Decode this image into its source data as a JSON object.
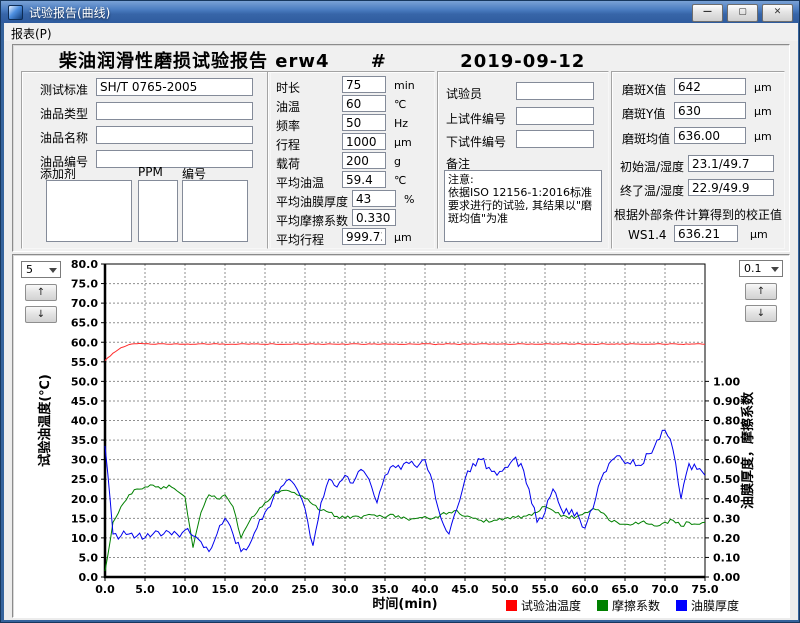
{
  "window": {
    "title": "试验报告(曲线)",
    "menu_item": "报表(P)",
    "buttons": {
      "minimize": "—",
      "maximize": "▢",
      "close": "✕"
    }
  },
  "report": {
    "title": "柴油润滑性磨损试验报告 erw4",
    "separator": "#",
    "date": "2019-09-12"
  },
  "sample_box": {
    "rows": [
      {
        "label": "测试标准",
        "value": "SH/T 0765-2005"
      },
      {
        "label": "油品类型",
        "value": ""
      },
      {
        "label": "油品名称",
        "value": ""
      },
      {
        "label": "油品编号",
        "value": ""
      }
    ],
    "additive_label": "添加剂",
    "ppm_label": "PPM",
    "number_label": "编号"
  },
  "param_box": {
    "rows": [
      {
        "label": "时长",
        "value": "75",
        "unit": "min"
      },
      {
        "label": "油温",
        "value": "60",
        "unit": "℃"
      },
      {
        "label": "频率",
        "value": "50",
        "unit": "Hz"
      },
      {
        "label": "行程",
        "value": "1000",
        "unit": "μm"
      },
      {
        "label": "载荷",
        "value": "200",
        "unit": "g"
      },
      {
        "label": "平均油温",
        "value": "59.4",
        "unit": "℃"
      },
      {
        "label": "平均油膜厚度",
        "value": "43",
        "unit": "%"
      },
      {
        "label": "平均摩擦系数",
        "value": "0.330",
        "unit": ""
      },
      {
        "label": "平均行程",
        "value": "999.73",
        "unit": "μm"
      }
    ]
  },
  "operator_box": {
    "rows": [
      {
        "label": "试验员",
        "value": ""
      },
      {
        "label": "上试件编号",
        "value": ""
      },
      {
        "label": "下试件编号",
        "value": ""
      }
    ],
    "remark_label": "备注",
    "remark_text": "注意:\n依据ISO 12156-1:2016标准要求进行的试验, 其结果以\"磨斑均值\"为准"
  },
  "result_box": {
    "rows": [
      {
        "label": "磨斑X值",
        "value": "642",
        "unit": "μm"
      },
      {
        "label": "磨斑Y值",
        "value": "630",
        "unit": "μm"
      },
      {
        "label": "磨斑均值",
        "value": "636.00",
        "unit": "μm"
      },
      {
        "label": "初始温/湿度",
        "value": "23.1/49.7",
        "unit": ""
      },
      {
        "label": "终了温/湿度",
        "value": "22.9/49.9",
        "unit": ""
      }
    ],
    "correction_note": "根据外部条件计算得到的校正值",
    "correction_label": "WS1.4",
    "correction_value": "636.21",
    "correction_unit": "μm"
  },
  "chart_controls": {
    "left_scale": "5",
    "right_scale": "0.1",
    "up_glyph": "↑",
    "down_glyph": "↓"
  },
  "chart_data": {
    "type": "line",
    "xlabel": "时间(min)",
    "ylabel_left": "试验油温度(℃)",
    "ylabel_right": "油膜厚度，摩擦系数",
    "xlim": [
      0,
      75
    ],
    "xtick_step": 5,
    "ylim_left": [
      0,
      80
    ],
    "ytick_step_left": 5,
    "ylim_right": [
      0,
      1.6
    ],
    "ytick_step_right": 0.1,
    "right_label_max": 1.0,
    "grid": "dashed",
    "legend_position": "bottom-right",
    "legend": [
      "试验油温度",
      "摩擦系数",
      "油膜厚度"
    ],
    "legend_colors": [
      "#ff0000",
      "#008000",
      "#0000ff"
    ],
    "series": [
      {
        "name": "试验油温度",
        "color": "#ff2a2a",
        "axis": "left",
        "x_start": 0,
        "x_step": 1,
        "values": [
          55.3,
          57.2,
          58.6,
          59.4,
          59.6,
          59.6,
          59.5,
          59.6,
          59.5,
          59.6,
          59.5,
          59.5,
          59.6,
          59.5,
          59.6,
          59.5,
          59.5,
          59.6,
          59.5,
          59.6,
          59.5,
          59.6,
          59.5,
          59.5,
          59.6,
          59.5,
          59.6,
          59.5,
          59.6,
          59.5,
          59.5,
          59.6,
          59.5,
          59.6,
          59.5,
          59.6,
          59.5,
          59.5,
          59.6,
          59.5,
          59.6,
          59.5,
          59.5,
          59.6,
          59.5,
          59.6,
          59.5,
          59.6,
          59.5,
          59.5,
          59.6,
          59.5,
          59.6,
          59.5,
          59.5,
          59.6,
          59.5,
          59.6,
          59.5,
          59.6,
          59.5,
          59.5,
          59.6,
          59.5,
          59.6,
          59.5,
          59.6,
          59.5,
          59.5,
          59.6,
          59.5,
          59.6,
          59.5,
          59.5,
          59.6,
          59.5
        ]
      },
      {
        "name": "摩擦系数",
        "color": "#008000",
        "axis": "right",
        "x_start": 0,
        "x_step": 1,
        "values": [
          0.03,
          0.28,
          0.36,
          0.42,
          0.45,
          0.46,
          0.47,
          0.45,
          0.47,
          0.44,
          0.41,
          0.15,
          0.33,
          0.42,
          0.4,
          0.42,
          0.36,
          0.2,
          0.28,
          0.33,
          0.38,
          0.42,
          0.44,
          0.44,
          0.42,
          0.4,
          0.37,
          0.34,
          0.33,
          0.31,
          0.3,
          0.31,
          0.3,
          0.32,
          0.31,
          0.3,
          0.32,
          0.3,
          0.29,
          0.3,
          0.31,
          0.3,
          0.32,
          0.33,
          0.34,
          0.31,
          0.3,
          0.29,
          0.28,
          0.29,
          0.3,
          0.31,
          0.3,
          0.32,
          0.33,
          0.36,
          0.34,
          0.31,
          0.3,
          0.31,
          0.33,
          0.35,
          0.33,
          0.29,
          0.28,
          0.27,
          0.27,
          0.28,
          0.27,
          0.26,
          0.28,
          0.29,
          0.26,
          0.28,
          0.27,
          0.28
        ]
      },
      {
        "name": "油膜厚度",
        "color": "#0000ee",
        "axis": "right",
        "x_start": 0,
        "x_step": 1,
        "values": [
          0.67,
          0.22,
          0.21,
          0.22,
          0.21,
          0.2,
          0.22,
          0.21,
          0.23,
          0.22,
          0.24,
          0.21,
          0.18,
          0.13,
          0.22,
          0.3,
          0.22,
          0.13,
          0.16,
          0.25,
          0.33,
          0.4,
          0.46,
          0.5,
          0.45,
          0.35,
          0.16,
          0.38,
          0.5,
          0.46,
          0.52,
          0.48,
          0.55,
          0.5,
          0.38,
          0.52,
          0.57,
          0.55,
          0.58,
          0.56,
          0.6,
          0.48,
          0.3,
          0.22,
          0.35,
          0.5,
          0.58,
          0.6,
          0.56,
          0.52,
          0.56,
          0.6,
          0.58,
          0.45,
          0.28,
          0.33,
          0.45,
          0.35,
          0.32,
          0.33,
          0.25,
          0.35,
          0.5,
          0.58,
          0.62,
          0.58,
          0.6,
          0.57,
          0.63,
          0.7,
          0.75,
          0.65,
          0.4,
          0.58,
          0.55,
          0.52
        ]
      }
    ]
  }
}
